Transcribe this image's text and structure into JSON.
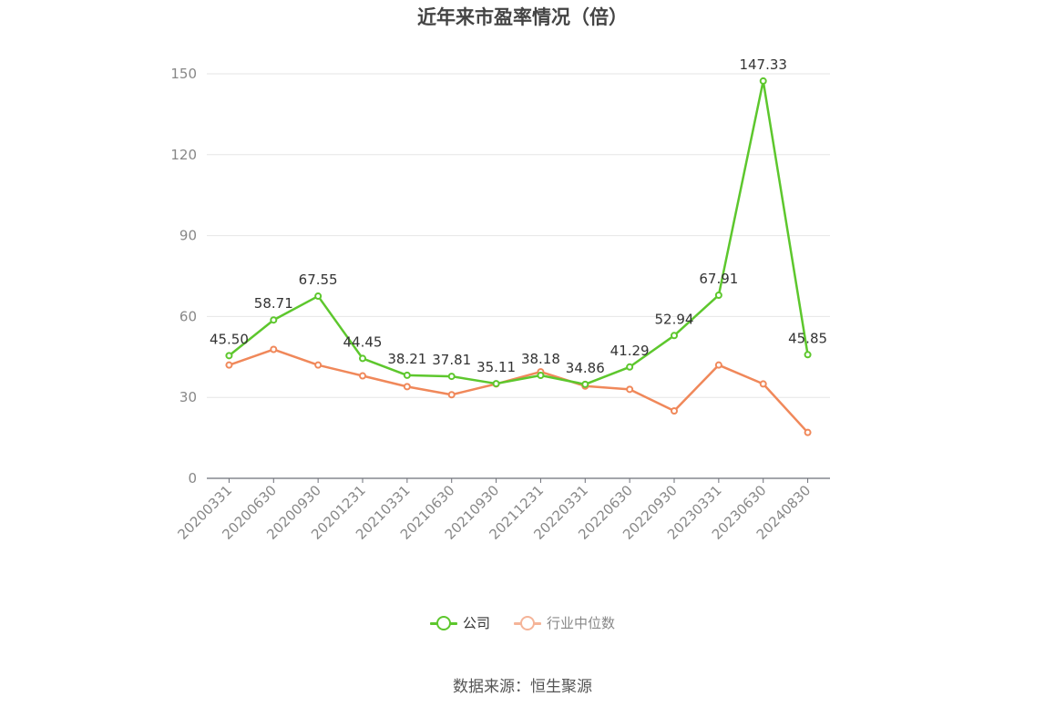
{
  "chart_data": {
    "type": "line",
    "title": "近年来市盈率情况（倍）",
    "categories": [
      "20200331",
      "20200630",
      "20200930",
      "20201231",
      "20210331",
      "20210630",
      "20210930",
      "20211231",
      "20220331",
      "20220630",
      "20220930",
      "20230331",
      "20230630",
      "20240830"
    ],
    "series": [
      {
        "name": "公司",
        "color": "#5dc72d",
        "values": [
          45.5,
          58.71,
          67.55,
          44.45,
          38.21,
          37.81,
          35.11,
          38.18,
          34.86,
          41.29,
          52.94,
          67.91,
          147.33,
          45.85
        ],
        "labels": [
          "45.50",
          "58.71",
          "67.55",
          "44.45",
          "38.21",
          "37.81",
          "35.11",
          "38.18",
          "34.86",
          "41.29",
          "52.94",
          "67.91",
          "147.33",
          "45.85"
        ]
      },
      {
        "name": "行业中位数",
        "color": "#f0885a",
        "legend_color": "#f5b498",
        "values": [
          42,
          47.8,
          42,
          38,
          34,
          31,
          35,
          39.5,
          34.2,
          33,
          25,
          42,
          35,
          17
        ]
      }
    ],
    "ylim": [
      0,
      150
    ],
    "yticks": [
      "0",
      "30",
      "60",
      "90",
      "120",
      "150"
    ],
    "grid": true,
    "legend_position": "bottom-center"
  },
  "source": "数据来源：恒生聚源"
}
